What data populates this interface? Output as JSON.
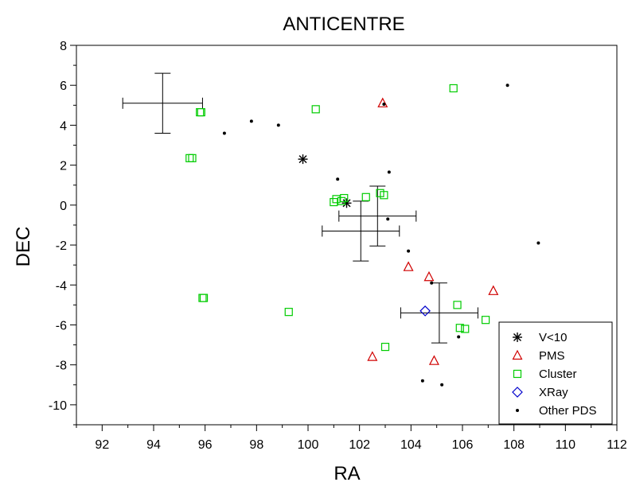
{
  "chart_data": {
    "type": "scatter",
    "title": "ANTICENTRE",
    "xlabel": "RA",
    "ylabel": "DEC",
    "xlim": [
      91,
      112
    ],
    "ylim": [
      -11,
      8
    ],
    "x_ticks": [
      "92",
      "94",
      "96",
      "98",
      "100",
      "102",
      "104",
      "106",
      "108",
      "110",
      "112"
    ],
    "y_ticks": [
      "8",
      "6",
      "4",
      "2",
      "0",
      "-2",
      "-4",
      "-6",
      "-8",
      "-10"
    ],
    "grid": false,
    "legend_position": "bottom-right",
    "series": [
      {
        "name": "V<10",
        "marker": "asterisk",
        "color": "#000000",
        "points": [
          [
            99.8,
            2.3
          ],
          [
            101.5,
            0.1
          ]
        ]
      },
      {
        "name": "PMS",
        "marker": "triangle",
        "color": "#d00000",
        "points": [
          [
            102.9,
            5.1
          ],
          [
            103.9,
            -3.1
          ],
          [
            104.7,
            -3.6
          ],
          [
            107.2,
            -4.3
          ],
          [
            102.5,
            -7.6
          ],
          [
            104.9,
            -7.8
          ]
        ]
      },
      {
        "name": "Cluster",
        "marker": "square",
        "color": "#00cc00",
        "points": [
          [
            95.8,
            4.65
          ],
          [
            95.85,
            4.65
          ],
          [
            95.4,
            2.35
          ],
          [
            95.5,
            2.35
          ],
          [
            100.3,
            4.8
          ],
          [
            101.0,
            0.15
          ],
          [
            101.1,
            0.3
          ],
          [
            101.3,
            0.2
          ],
          [
            101.4,
            0.35
          ],
          [
            102.25,
            0.4
          ],
          [
            102.8,
            0.6
          ],
          [
            102.95,
            0.5
          ],
          [
            105.65,
            5.85
          ],
          [
            95.9,
            -4.65
          ],
          [
            95.95,
            -4.65
          ],
          [
            99.25,
            -5.35
          ],
          [
            103.0,
            -7.1
          ],
          [
            105.8,
            -5.0
          ],
          [
            105.9,
            -6.15
          ],
          [
            106.1,
            -6.2
          ],
          [
            106.9,
            -5.75
          ]
        ]
      },
      {
        "name": "XRay",
        "marker": "diamond",
        "color": "#0000cc",
        "points": [
          [
            104.55,
            -5.3
          ]
        ]
      },
      {
        "name": "Other PDS",
        "marker": "dot",
        "color": "#000000",
        "points": [
          [
            96.75,
            3.6
          ],
          [
            97.8,
            4.2
          ],
          [
            98.85,
            4.0
          ],
          [
            101.15,
            1.3
          ],
          [
            103.15,
            1.65
          ],
          [
            103.1,
            -0.7
          ],
          [
            103.9,
            -2.3
          ],
          [
            104.8,
            -3.9
          ],
          [
            105.85,
            -6.6
          ],
          [
            104.45,
            -8.8
          ],
          [
            105.2,
            -9.0
          ],
          [
            107.75,
            6.0
          ],
          [
            108.95,
            -1.9
          ],
          [
            102.95,
            5.05
          ]
        ]
      }
    ],
    "error_bars": [
      {
        "x": 94.35,
        "y": 5.1,
        "xerr": [
          1.55,
          1.55
        ],
        "yerr": [
          1.5,
          1.5
        ]
      },
      {
        "x": 102.7,
        "y": -0.55,
        "xerr": [
          1.5,
          1.5
        ],
        "yerr": [
          1.5,
          1.5
        ]
      },
      {
        "x": 102.05,
        "y": -1.3,
        "xerr": [
          1.5,
          1.5
        ],
        "yerr": [
          1.5,
          1.5
        ]
      },
      {
        "x": 105.1,
        "y": -5.4,
        "xerr": [
          1.5,
          1.5
        ],
        "yerr": [
          1.5,
          1.5
        ]
      }
    ]
  }
}
